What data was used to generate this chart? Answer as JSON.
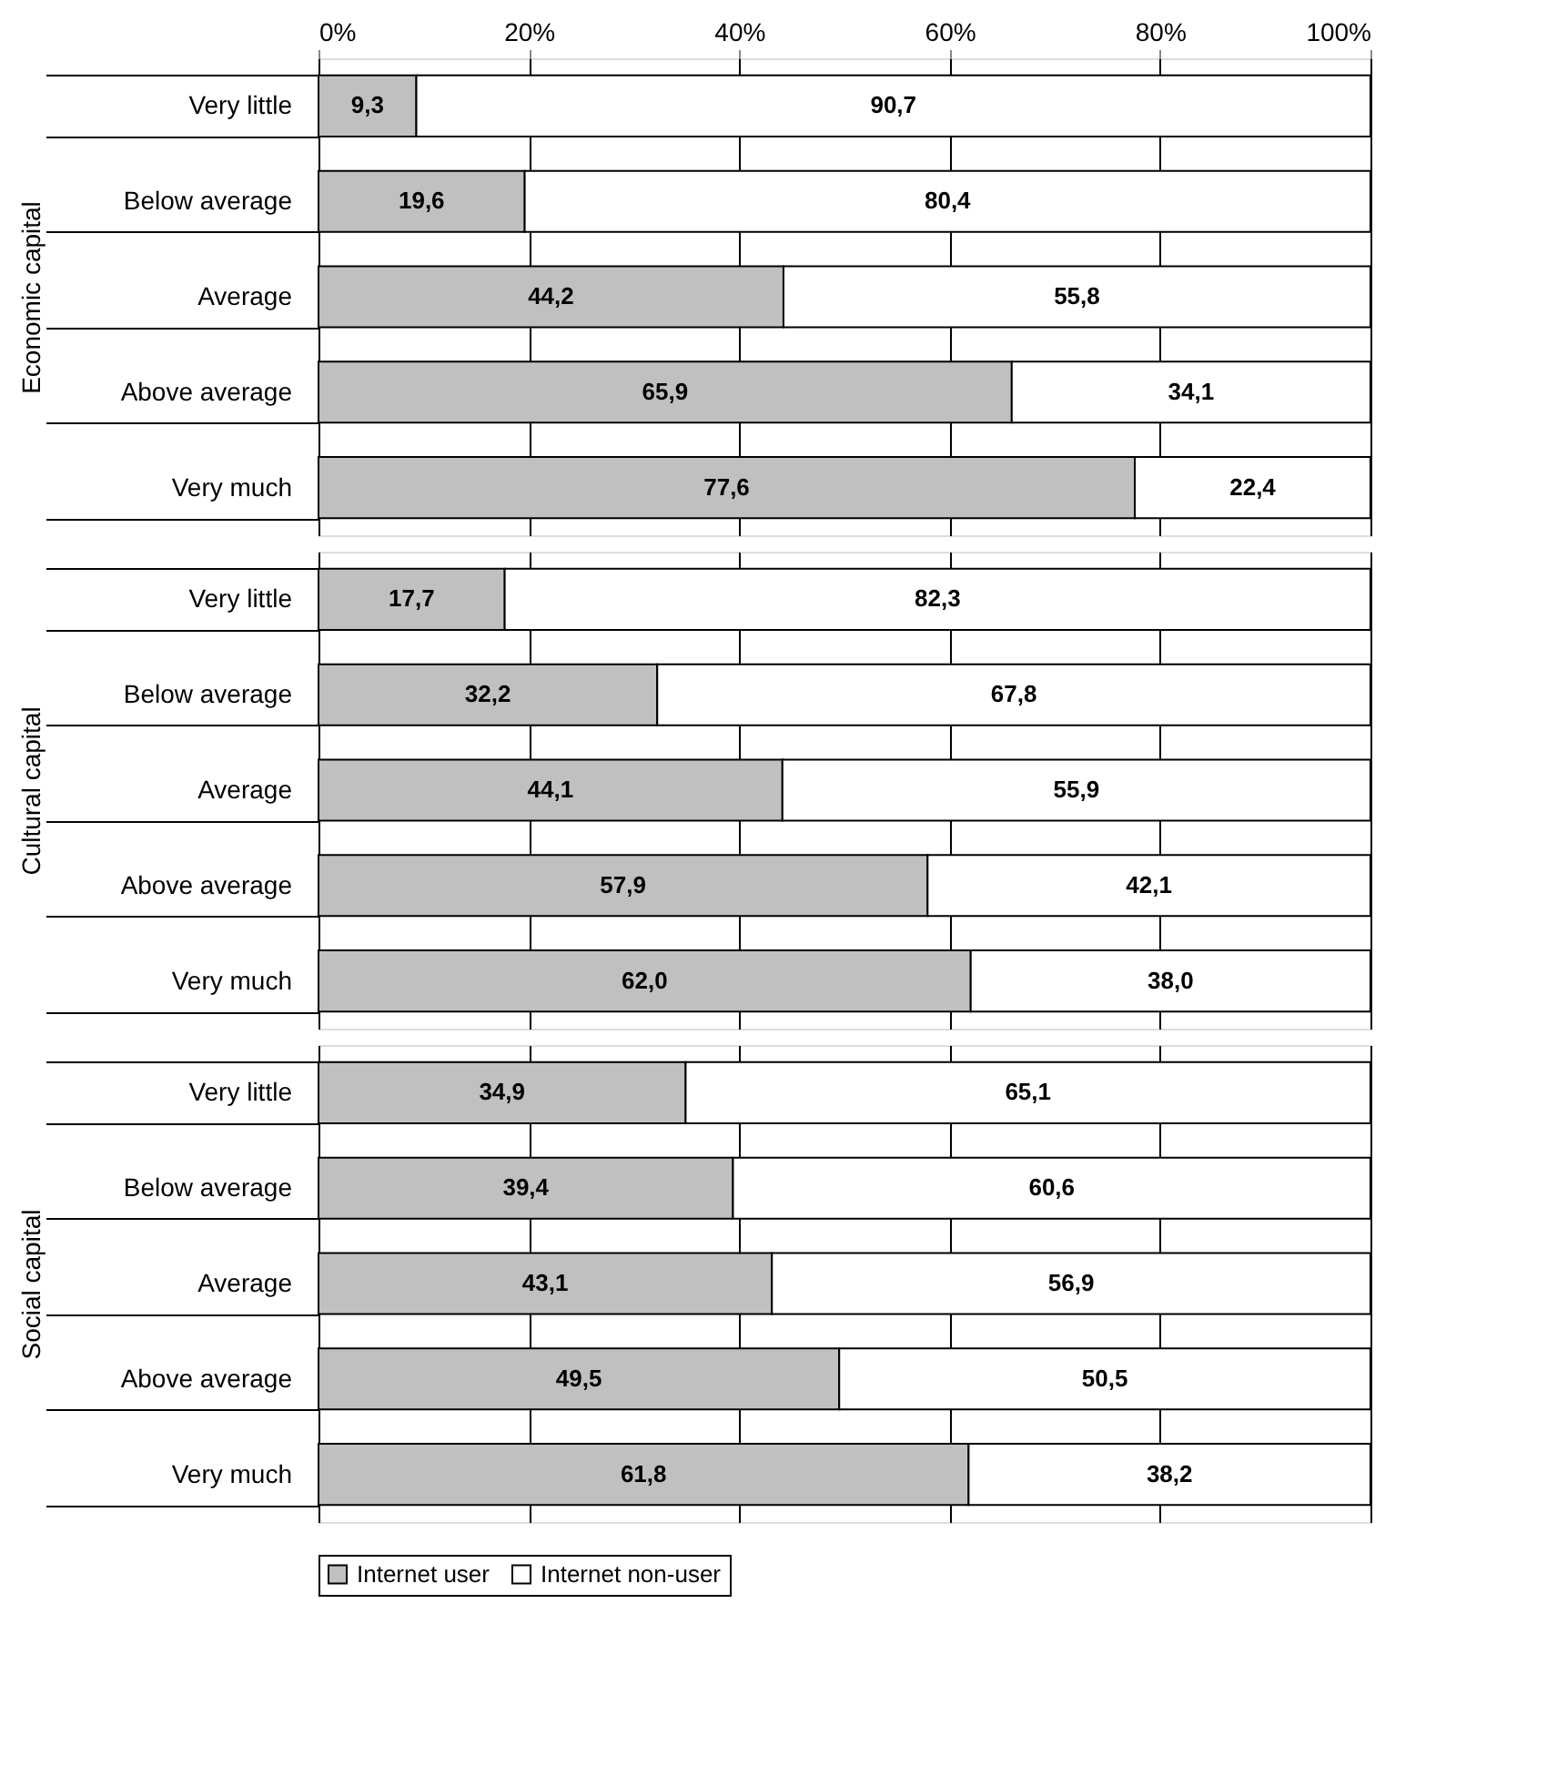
{
  "chart_data": [
    {
      "type": "bar",
      "orientation": "horizontal",
      "stacked": true,
      "ylabel": "Economic capital",
      "categories": [
        "Very little",
        "Below average",
        "Average",
        "Above average",
        "Very much"
      ],
      "xlim": [
        0,
        100
      ],
      "xticks": [
        {
          "value": 0,
          "label": "0%"
        },
        {
          "value": 20,
          "label": "20%"
        },
        {
          "value": 40,
          "label": "40%"
        },
        {
          "value": 60,
          "label": "60%"
        },
        {
          "value": 80,
          "label": "80%"
        },
        {
          "value": 100,
          "label": "100%"
        }
      ],
      "grid": "x",
      "series": [
        {
          "color": "#c0c0c0",
          "values": [
            9.3,
            19.6,
            44.2,
            65.9,
            77.6
          ],
          "value_labels": [
            "9,3",
            "19,6",
            "44,2",
            "65,9",
            "77,6"
          ]
        },
        {
          "color": "#ffffff",
          "values": [
            90.7,
            80.4,
            55.8,
            34.1,
            22.4
          ],
          "value_labels": [
            "90,7",
            "80,4",
            "55,8",
            "34,1",
            "22,4"
          ]
        }
      ]
    },
    {
      "type": "bar",
      "orientation": "horizontal",
      "stacked": true,
      "ylabel": "Cultural capital",
      "categories": [
        "Very little",
        "Below average",
        "Average",
        "Above average",
        "Very much"
      ],
      "xlim": [
        0,
        100
      ],
      "grid": "x",
      "tick_labels": "y",
      "series": [
        {
          "color": "#c0c0c0",
          "values": [
            17.7,
            32.2,
            44.1,
            57.9,
            62.0
          ],
          "value_labels": [
            "17,7",
            "32,2",
            "44,1",
            "57,9",
            "62,0"
          ]
        },
        {
          "color": "#ffffff",
          "values": [
            82.3,
            67.8,
            55.9,
            42.1,
            38.0
          ],
          "value_labels": [
            "82,3",
            "67,8",
            "55,9",
            "42,1",
            "38,0"
          ]
        }
      ]
    },
    {
      "type": "bar",
      "orientation": "horizontal",
      "stacked": true,
      "ylabel": "Social capital",
      "categories": [
        "Very little",
        "Below average",
        "Average",
        "Above average",
        "Very much"
      ],
      "xlim": [
        0,
        100
      ],
      "grid": "x",
      "legend": "bottom",
      "tick_labels": "y",
      "series": [
        {
          "name": "Internet user",
          "color": "#c0c0c0",
          "values": [
            34.9,
            39.4,
            43.1,
            49.5,
            61.8
          ],
          "value_labels": [
            "34,9",
            "39,4",
            "43,1",
            "49,5",
            "61,8"
          ]
        },
        {
          "name": "Internet non-user",
          "color": "#ffffff",
          "values": [
            65.1,
            60.6,
            56.9,
            50.5,
            38.2
          ],
          "value_labels": [
            "65,1",
            "60,6",
            "56,9",
            "50,5",
            "38,2"
          ]
        }
      ]
    }
  ]
}
